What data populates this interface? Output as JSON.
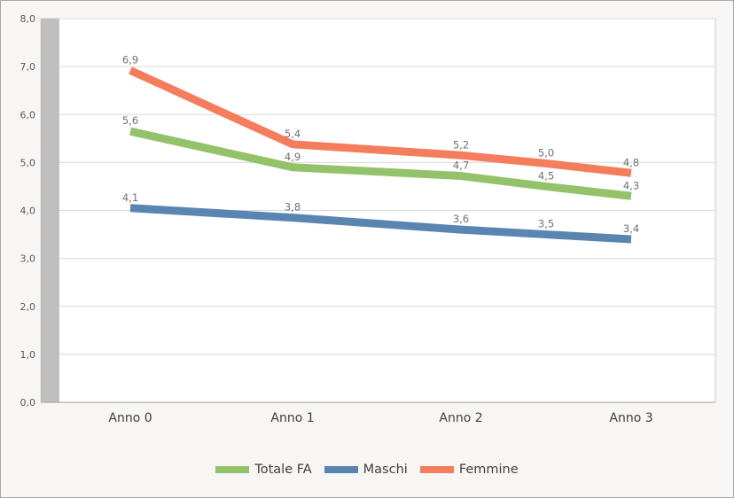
{
  "chart_data": {
    "type": "line",
    "categories": [
      "Anno 0",
      "Anno 1",
      "Anno 2",
      "Anno 3"
    ],
    "ylim": [
      0,
      8
    ],
    "ytick_values": [
      0,
      1,
      2,
      3,
      4,
      5,
      6,
      7,
      8
    ],
    "ytick_labels": [
      "0,0",
      "1,0",
      "2,0",
      "3,0",
      "4,0",
      "5,0",
      "6,0",
      "7,0",
      "8,0"
    ],
    "grid": true,
    "legend_position": "bottom",
    "series": [
      {
        "name": "Totale FA",
        "color": "#93c26b",
        "x": [
          0,
          1,
          2,
          2.5,
          3
        ],
        "values": [
          5.65,
          4.9,
          4.72,
          4.5,
          4.3
        ],
        "labels": [
          "5,6",
          "4,9",
          "4,7",
          "4,5",
          "4,3"
        ]
      },
      {
        "name": "Maschi",
        "color": "#5a85b1",
        "x": [
          0,
          1,
          2,
          2.5,
          3
        ],
        "values": [
          4.05,
          3.85,
          3.6,
          3.5,
          3.4
        ],
        "labels": [
          "4,1",
          "3,8",
          "3,6",
          "3,5",
          "3,4"
        ]
      },
      {
        "name": "Femmine",
        "color": "#f47d5d",
        "x": [
          0,
          1,
          2,
          2.5,
          3
        ],
        "values": [
          6.92,
          5.38,
          5.15,
          4.98,
          4.78
        ],
        "labels": [
          "6,9",
          "5,4",
          "5,2",
          "5,0",
          "4,8"
        ]
      }
    ]
  }
}
